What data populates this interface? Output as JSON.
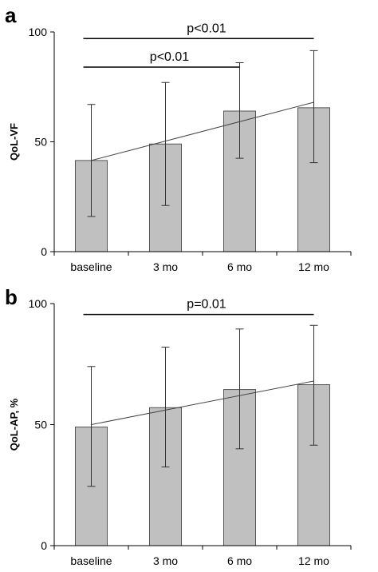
{
  "chart_data": [
    {
      "type": "bar",
      "panel_label": "a",
      "ylabel": "QoL-VF",
      "categories": [
        "baseline",
        "3 mo",
        "6 mo",
        "12 mo"
      ],
      "values": [
        41.5,
        49.0,
        64.0,
        65.5
      ],
      "error_upper": [
        67,
        77,
        86,
        91.5
      ],
      "error_lower": [
        16,
        21,
        42.5,
        40.5
      ],
      "ylim": [
        0,
        100
      ],
      "yticks": [
        0,
        50,
        100
      ],
      "bar_color": "#c0c0c0",
      "trendline": {
        "start": 41.5,
        "end": 68
      },
      "significance": [
        {
          "label": "p<0.01",
          "from": 0,
          "to": 3,
          "y": 97
        },
        {
          "label": "p<0.01",
          "from": 0,
          "to": 2,
          "y": 84
        }
      ]
    },
    {
      "type": "bar",
      "panel_label": "b",
      "ylabel": "QoL-AP, %",
      "categories": [
        "baseline",
        "3 mo",
        "6 mo",
        "12 mo"
      ],
      "values": [
        49.0,
        57.0,
        64.5,
        66.5
      ],
      "error_upper": [
        74,
        82,
        89.5,
        91
      ],
      "error_lower": [
        24.5,
        32.5,
        40,
        41.5
      ],
      "ylim": [
        0,
        100
      ],
      "yticks": [
        0,
        50,
        100
      ],
      "bar_color": "#c0c0c0",
      "trendline": {
        "start": 50,
        "end": 68
      },
      "significance": [
        {
          "label": "p=0.01",
          "from": 0,
          "to": 3,
          "y": 95.5
        }
      ]
    }
  ]
}
